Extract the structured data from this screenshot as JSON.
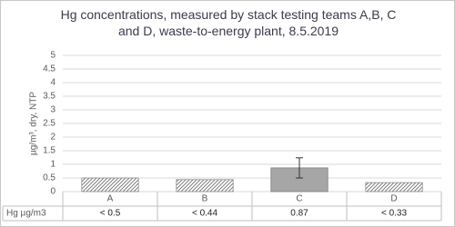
{
  "chart_data": {
    "type": "bar",
    "title": "Hg concentrations, measured by stack testing teams A,B, C and D, waste-to-energy plant,  8.5.2019",
    "y_label": "µg/m³, dry, NTP",
    "categories": [
      "A",
      "B",
      "C",
      "D"
    ],
    "values": [
      0.5,
      0.44,
      0.87,
      0.33
    ],
    "errors": [
      null,
      null,
      0.37,
      null
    ],
    "patterns": [
      "hatch",
      "hatch",
      "solid",
      "hatch"
    ],
    "color": "#a6a6a6",
    "table_label": "Hg µg/m3",
    "value_labels": [
      "< 0.5",
      "< 0.44",
      "0.87",
      "< 0.33"
    ],
    "ylim": [
      0,
      5
    ],
    "yticks": [
      0,
      0.5,
      1,
      1.5,
      2,
      2.5,
      3,
      3.5,
      4,
      4.5,
      5
    ],
    "grid": true
  }
}
